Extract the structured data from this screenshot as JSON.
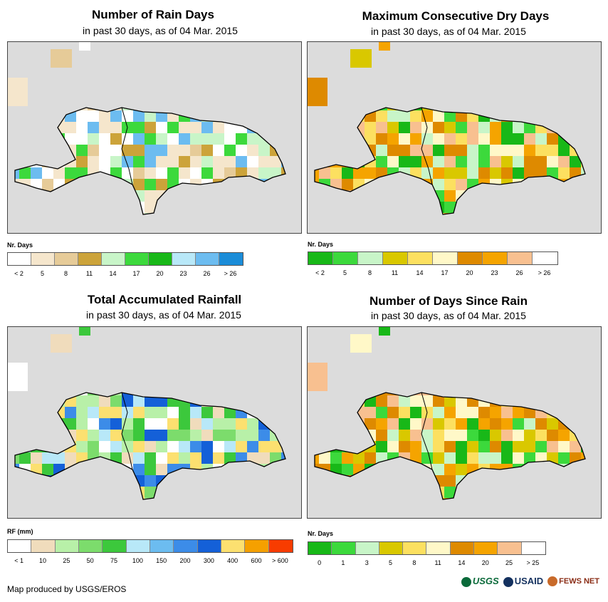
{
  "panels": [
    {
      "title": "Number of Rain Days",
      "subtitle": "in past 30 days, as of 04 Mar. 2015",
      "legend_title": "Nr. Days",
      "legend_colors": [
        "#ffffff",
        "#f5e6cc",
        "#e6cb98",
        "#cca33a",
        "#c8f5c8",
        "#3cd93c",
        "#18b818",
        "#b8e8f8",
        "#6cbcf0",
        "#1a8cd8"
      ],
      "legend_labels": [
        "< 2",
        "5",
        "8",
        "11",
        "14",
        "17",
        "20",
        "23",
        "26",
        "> 26"
      ],
      "fill_colors": [
        "#ffffff",
        "#f5e6cc",
        "#e6cb98",
        "#f5e6cc",
        "#ffffff",
        "#c8f5c8",
        "#3cd93c",
        "#6cbcf0",
        "#cca33a"
      ]
    },
    {
      "title": "Maximum Consecutive Dry Days",
      "subtitle": "in past 30 days, as of 04 Mar. 2015",
      "legend_title": "Nr. Days",
      "legend_colors": [
        "#18b818",
        "#3cd93c",
        "#c8f5c8",
        "#d9c800",
        "#fce060",
        "#fff8c8",
        "#de8a00",
        "#f5a400",
        "#f8c090",
        "#ffffff"
      ],
      "legend_labels": [
        "< 2",
        "5",
        "8",
        "11",
        "14",
        "17",
        "20",
        "23",
        "26",
        "> 26"
      ],
      "fill_colors": [
        "#fce060",
        "#fff8c8",
        "#d9c800",
        "#de8a00",
        "#f5a400",
        "#f8c090",
        "#18b818",
        "#3cd93c",
        "#c8f5c8",
        "#fce060"
      ]
    },
    {
      "title": "Total Accumulated Rainfall",
      "subtitle": "in past 30 days, as of 04 Mar. 2015",
      "legend_title": "RF (mm)",
      "legend_colors": [
        "#ffffff",
        "#f0dcbc",
        "#b8f0a8",
        "#7cdc6c",
        "#3cc83c",
        "#b8e8f8",
        "#6cbcf0",
        "#3c8ce8",
        "#1460d8",
        "#fce070",
        "#f5a000",
        "#f83c00"
      ],
      "legend_labels": [
        "< 1",
        "10",
        "25",
        "50",
        "75",
        "100",
        "150",
        "200",
        "300",
        "400",
        "600",
        "> 600"
      ],
      "fill_colors": [
        "#b8f0a8",
        "#7cdc6c",
        "#f0dcbc",
        "#ffffff",
        "#3cc83c",
        "#b8f0a8",
        "#b8e8f8",
        "#3c8ce8",
        "#1460d8",
        "#fce070"
      ]
    },
    {
      "title": "Number of Days Since Rain",
      "subtitle": "in past 30 days, as of 04 Mar. 2015",
      "legend_title": "Nr. Days",
      "legend_colors": [
        "#18b818",
        "#3cd93c",
        "#c8f5c8",
        "#d9c800",
        "#fce060",
        "#fff8c8",
        "#de8a00",
        "#f5a400",
        "#f8c090",
        "#ffffff"
      ],
      "legend_labels": [
        "0",
        "1",
        "3",
        "5",
        "8",
        "11",
        "14",
        "20",
        "25",
        "> 25"
      ],
      "fill_colors": [
        "#de8a00",
        "#fce060",
        "#fff8c8",
        "#f8c090",
        "#18b818",
        "#3cd93c",
        "#c8f5c8",
        "#f5a400",
        "#d9c800",
        "#de8a00"
      ]
    }
  ],
  "footer": "Map produced by USGS/EROS",
  "logos": {
    "usgs": "USGS",
    "usaid": "USAID",
    "fews": "FEWS NET"
  }
}
